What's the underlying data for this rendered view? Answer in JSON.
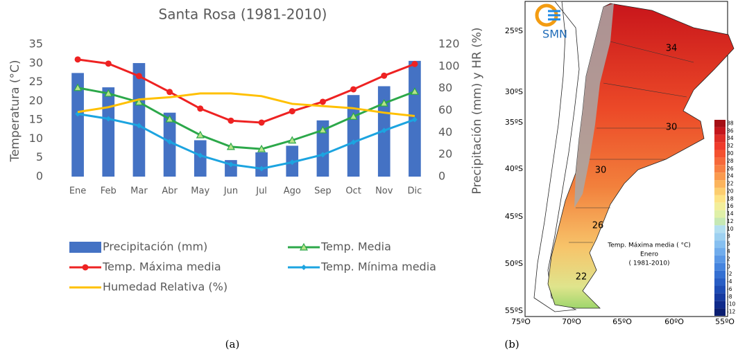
{
  "chart_data": {
    "type": "combo",
    "title": "Santa Rosa (1981-2010)",
    "y_label": "Temperatura (°C)",
    "y2_label": "Precipitación (mm) y HR (%)",
    "categories": [
      "Ene",
      "Feb",
      "Mar",
      "Abr",
      "May",
      "Jun",
      "Jul",
      "Ago",
      "Sep",
      "Oct",
      "Nov",
      "Dic"
    ],
    "ylim": [
      0,
      35
    ],
    "yticks": [
      0,
      5,
      10,
      15,
      20,
      25,
      30,
      35
    ],
    "y2lim": [
      0,
      120
    ],
    "y2ticks": [
      0,
      20,
      40,
      60,
      80,
      100,
      120
    ],
    "series": [
      {
        "name": "Precipitación (mm)",
        "type": "bar",
        "axis": "y2",
        "color": "#4472c4",
        "values": [
          94,
          81,
          103,
          58,
          33,
          15,
          22,
          28,
          51,
          74,
          82,
          105
        ]
      },
      {
        "name": "Temp. Media",
        "type": "line",
        "marker": "triangle",
        "color": "#2ca84a",
        "values": [
          23.5,
          22,
          19.7,
          15.2,
          11,
          7.9,
          7.3,
          9.6,
          12.3,
          15.9,
          19.4,
          22.5
        ]
      },
      {
        "name": "Temp. Máxima media",
        "type": "line",
        "marker": "circle",
        "color": "#ee2222",
        "values": [
          31,
          29.9,
          26.6,
          22.4,
          18,
          14.8,
          14.3,
          17.3,
          19.8,
          23.1,
          26.7,
          29.8
        ]
      },
      {
        "name": "Temp. Mínima media",
        "type": "line",
        "marker": "diamond",
        "color": "#1ca4e0",
        "values": [
          16.6,
          15.3,
          13.5,
          9.2,
          5.6,
          3.2,
          2.1,
          3.8,
          5.8,
          9.1,
          12.2,
          15.1
        ]
      },
      {
        "name": "Humedad Relativa (%)",
        "type": "line",
        "axis": "y2",
        "color": "#ffc000",
        "values": [
          58.6,
          63,
          70,
          72,
          75.5,
          75.5,
          73,
          66,
          64,
          62,
          58,
          55
        ]
      }
    ]
  },
  "map": {
    "logo": "SMN",
    "lat_labels": [
      "25ºS",
      "30ºS",
      "35ºS",
      "40ºS",
      "45ºS",
      "50ºS",
      "55ºS"
    ],
    "lon_labels": [
      "75ºO",
      "70ºO",
      "65ºO",
      "60ºO",
      "55ºO"
    ],
    "title_lines": [
      "Temp. Máxima media  ( °C)",
      "Enero",
      "( 1981-2010)"
    ],
    "contour_labels": [
      "34",
      "30",
      "30",
      "26",
      "22"
    ],
    "colorbar": {
      "ticks": [
        38,
        36,
        34,
        32,
        30,
        28,
        26,
        24,
        22,
        20,
        18,
        16,
        14,
        12,
        10,
        8,
        6,
        4,
        2,
        0,
        -2,
        -4,
        -6,
        -8,
        -10,
        -12
      ],
      "colors": [
        "#a50f15",
        "#c4161c",
        "#de2d26",
        "#ef3b2c",
        "#f4512f",
        "#f6693a",
        "#f88043",
        "#fa9a4e",
        "#fbb45c",
        "#fccd6e",
        "#fde385",
        "#f2ee9a",
        "#dff0a8",
        "#c6e8b4",
        "#b3dff0",
        "#9dd0f0",
        "#86bff0",
        "#70acec",
        "#5a98e6",
        "#4584de",
        "#3570d2",
        "#285dc4",
        "#1d4bb4",
        "#1539a0",
        "#0f2a8a",
        "#0a1d70"
      ]
    }
  },
  "captions": [
    "(a)",
    "(b)"
  ]
}
